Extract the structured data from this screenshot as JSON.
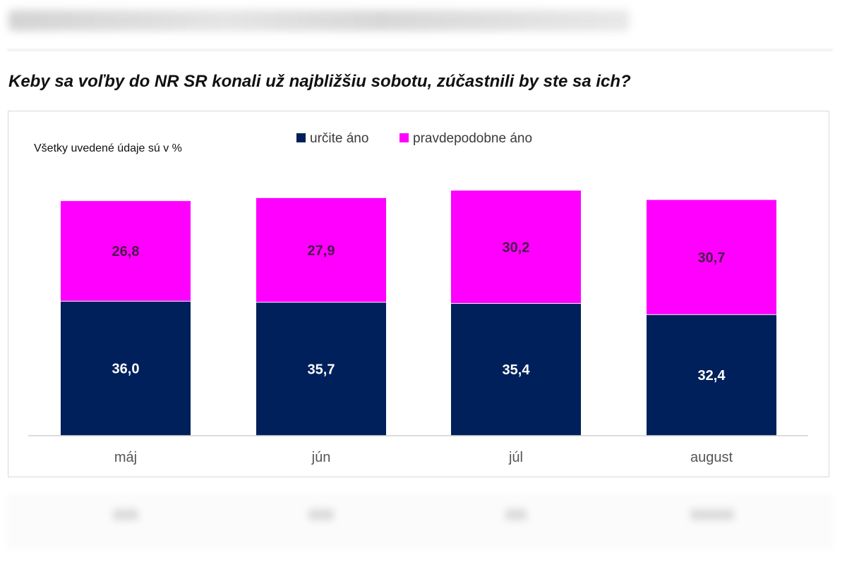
{
  "chart_data": {
    "type": "bar",
    "stacked": true,
    "title": "Keby sa voľby do NR SR konali už najbližšiu sobotu, zúčastnili by ste sa ich?",
    "note": "Všetky uvedené údaje sú v %",
    "categories": [
      "máj",
      "jún",
      "júl",
      "august"
    ],
    "series": [
      {
        "name": "určite áno",
        "color": "#00205b",
        "values": [
          36.0,
          35.7,
          35.4,
          32.4
        ],
        "labels": [
          "36,0",
          "35,7",
          "35,4",
          "32,4"
        ]
      },
      {
        "name": "pravdepodobne áno",
        "color": "#ff00ff",
        "values": [
          26.8,
          27.9,
          30.2,
          30.7
        ],
        "labels": [
          "26,8",
          "27,9",
          "30,2",
          "30,7"
        ]
      }
    ],
    "xlabel": "",
    "ylabel": "",
    "ylim": [
      0,
      70
    ],
    "legend_position": "top-center",
    "grid": false
  }
}
